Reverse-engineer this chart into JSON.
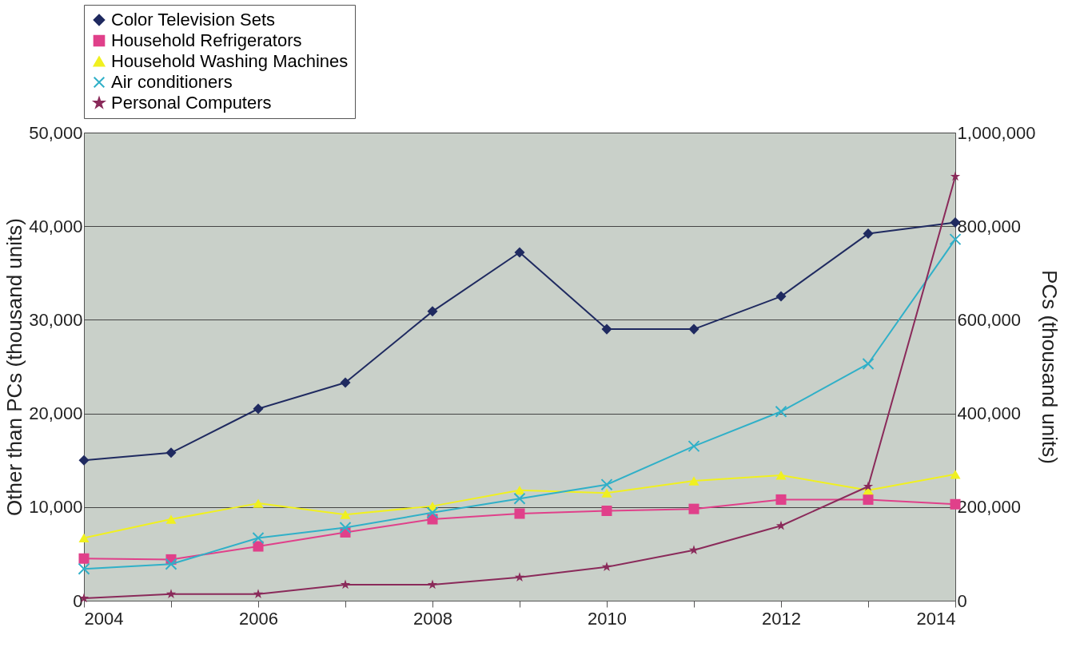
{
  "chart_data": {
    "type": "line",
    "x": [
      2004,
      2005,
      2006,
      2007,
      2008,
      2009,
      2010,
      2011,
      2012,
      2013,
      2014
    ],
    "ylabel": "Other than PCs (thousand units)",
    "y2label": "PCs (thousand units)",
    "series": [
      {
        "name": "Color Television Sets",
        "color": "#1f2a60",
        "marker": "diamond",
        "values": [
          15000,
          15800,
          20500,
          23300,
          30900,
          37200,
          29000,
          29000,
          32500,
          39200,
          40400
        ]
      },
      {
        "name": "Household Refrigerators",
        "color": "#e0408a",
        "marker": "square",
        "values": [
          4500,
          4400,
          5800,
          7300,
          8700,
          9300,
          9600,
          9800,
          10800,
          10800,
          10300
        ]
      },
      {
        "name": "Household Washing Machines",
        "color": "#f0f020",
        "marker": "triangle",
        "values": [
          6700,
          8700,
          10400,
          9200,
          10100,
          11800,
          11500,
          12800,
          13400,
          11800,
          13500
        ]
      },
      {
        "name": "Air conditioners",
        "color": "#30b0c8",
        "marker": "cross",
        "values": [
          3400,
          3900,
          6700,
          7800,
          9400,
          10900,
          12400,
          16500,
          20200,
          25300,
          38600
        ]
      },
      {
        "name": "Personal Computers",
        "color": "#8a2a5a",
        "marker": "star",
        "axis": "y2",
        "values": [
          5000,
          14000,
          14000,
          34000,
          34000,
          50000,
          72000,
          108000,
          160000,
          244000,
          906000
        ]
      }
    ],
    "xlim": [
      2004,
      2014
    ],
    "xticks": [
      2004,
      {
        "value": 2005,
        "label": null
      },
      2006,
      {
        "value": 2007,
        "label": null
      },
      2008,
      {
        "value": 2009,
        "label": null
      },
      2010,
      {
        "value": 2011,
        "label": null
      },
      2012,
      {
        "value": 2013,
        "label": null
      },
      2014
    ],
    "ylim": [
      0,
      50000
    ],
    "yticks": [
      0,
      {
        "value": 10000,
        "label": "10,000"
      },
      {
        "value": 20000,
        "label": "20,000"
      },
      {
        "value": 30000,
        "label": "30,000"
      },
      {
        "value": 40000,
        "label": "40,000"
      },
      {
        "value": 50000,
        "label": "50,000"
      }
    ],
    "y2lim": [
      0,
      1000000
    ],
    "y2ticks": [
      0,
      {
        "value": 200000,
        "label": "200,000"
      },
      {
        "value": 400000,
        "label": "400,000"
      },
      {
        "value": 600000,
        "label": "600,000"
      },
      {
        "value": 800000,
        "label": "800,000"
      },
      {
        "value": 1000000,
        "label": "1,000,000"
      }
    ],
    "grid": "y",
    "legend": "top"
  }
}
